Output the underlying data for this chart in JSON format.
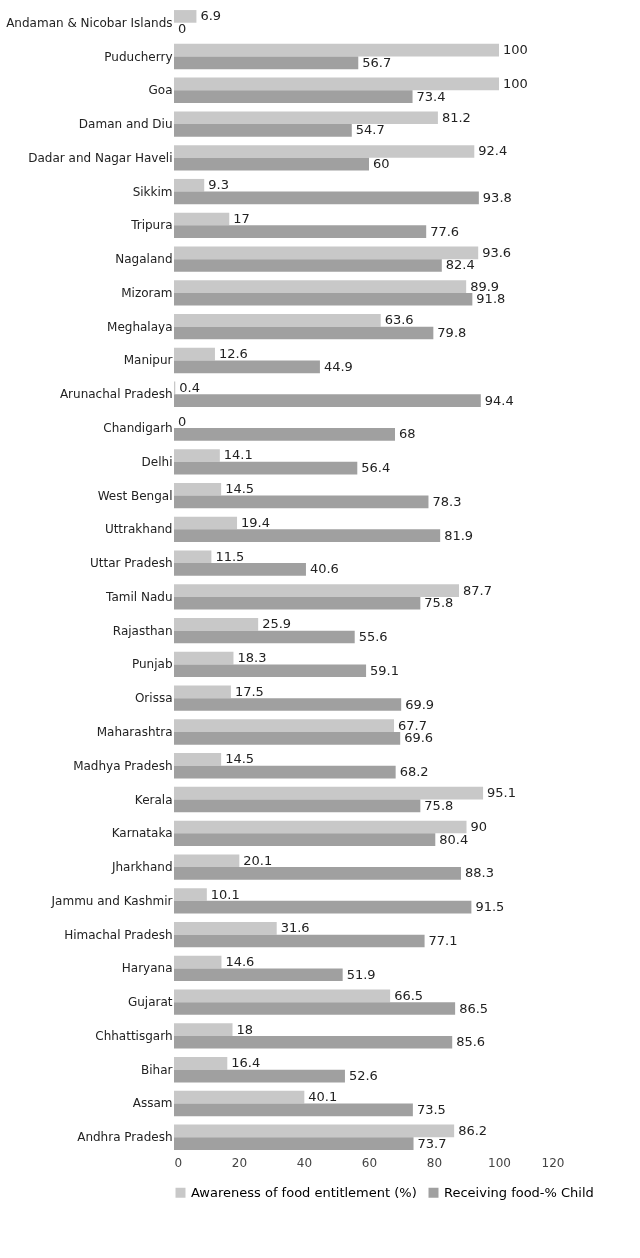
{
  "chart_data": {
    "type": "bar",
    "orientation": "horizontal",
    "categories": [
      "Andaman & Nicobar Islands",
      "Puducherry",
      "Goa",
      "Daman and Diu",
      "Dadar and Nagar Haveli",
      "Sikkim",
      "Tripura",
      "Nagaland",
      "Mizoram",
      "Meghalaya",
      "Manipur",
      "Arunachal Pradesh",
      "Chandigarh",
      "Delhi",
      "West Bengal",
      "Uttrakhand",
      "Uttar Pradesh",
      "Tamil Nadu",
      "Rajasthan",
      "Punjab",
      "Orissa",
      "Maharashtra",
      "Madhya Pradesh",
      "Kerala",
      "Karnataka",
      "Jharkhand",
      "Jammu and Kashmir",
      "Himachal Pradesh",
      "Haryana",
      "Gujarat",
      "Chhattisgarh",
      "Bihar",
      "Assam",
      "Andhra Pradesh"
    ],
    "series": [
      {
        "name": "Awareness of food entitlement (%)",
        "color": "#c8c8c8",
        "values": [
          6.9,
          100,
          100,
          81.2,
          92.4,
          9.3,
          17,
          93.6,
          89.9,
          63.6,
          12.6,
          0.4,
          0,
          14.1,
          14.5,
          19.4,
          11.5,
          87.7,
          25.9,
          18.3,
          17.5,
          67.7,
          14.5,
          95.1,
          90,
          20.1,
          10.1,
          31.6,
          14.6,
          66.5,
          18,
          16.4,
          40.1,
          86.2
        ]
      },
      {
        "name": "Receiving food-% Child",
        "color": "#a0a0a0",
        "values": [
          0,
          56.7,
          73.4,
          54.7,
          60,
          93.8,
          77.6,
          82.4,
          91.8,
          79.8,
          44.9,
          94.4,
          68,
          56.4,
          78.3,
          81.9,
          40.6,
          75.8,
          55.6,
          59.1,
          69.9,
          69.6,
          68.2,
          75.8,
          80.4,
          88.3,
          91.5,
          77.1,
          51.9,
          86.5,
          85.6,
          52.6,
          73.5,
          73.7
        ]
      }
    ],
    "xlim": [
      0,
      120
    ],
    "xticks": [
      0,
      20,
      40,
      60,
      80,
      100,
      120
    ],
    "data_labels": true,
    "grid": false,
    "legend": "bottom"
  }
}
